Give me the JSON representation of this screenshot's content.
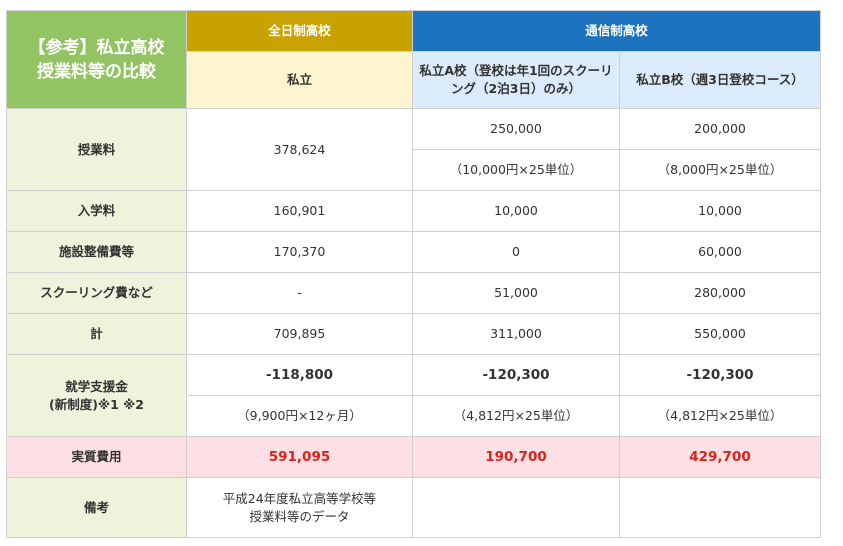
{
  "header": {
    "corner_line1": "【参考】私立高校",
    "corner_line2": "授業料等の比較",
    "fulltime": "全日制高校",
    "correspondence": "通信制高校",
    "sub_private": "私立",
    "sub_school_a": "私立A校（登校は年1回のスクーリング（2泊3日）のみ）",
    "sub_school_b": "私立B校（週3日登校コース）"
  },
  "rows": {
    "tuition": {
      "label": "授業料",
      "private": "378,624",
      "a": "250,000",
      "b": "200,000",
      "a_note": "（10,000円×25単位）",
      "b_note": "（8,000円×25単位）"
    },
    "admission": {
      "label": "入学料",
      "private": "160,901",
      "a": "10,000",
      "b": "10,000"
    },
    "facility": {
      "label": "施設整備費等",
      "private": "170,370",
      "a": "0",
      "b": "60,000"
    },
    "schooling": {
      "label": "スクーリング費など",
      "private": "-",
      "a": "51,000",
      "b": "280,000"
    },
    "total": {
      "label": "計",
      "private": "709,895",
      "a": "311,000",
      "b": "550,000"
    },
    "support": {
      "label_line1": "就学支援金",
      "label_line2": "(新制度)※1 ※2",
      "private": "-118,800",
      "a": "-120,300",
      "b": "-120,300",
      "private_note": "（9,900円×12ヶ月）",
      "a_note": "（4,812円×25単位）",
      "b_note": "（4,812円×25単位）"
    },
    "actual": {
      "label": "実質費用",
      "private": "591,095",
      "a": "190,700",
      "b": "429,700"
    },
    "remarks": {
      "label": "備考",
      "private_line1": "平成24年度私立高等学校等",
      "private_line2": "授業料等のデータ"
    }
  },
  "colors": {
    "corner": "#93c463",
    "fulltime": "#c9a200",
    "correspondence": "#1e73be",
    "actual_bg": "#fde0e3",
    "actual_text": "#e0211b"
  }
}
